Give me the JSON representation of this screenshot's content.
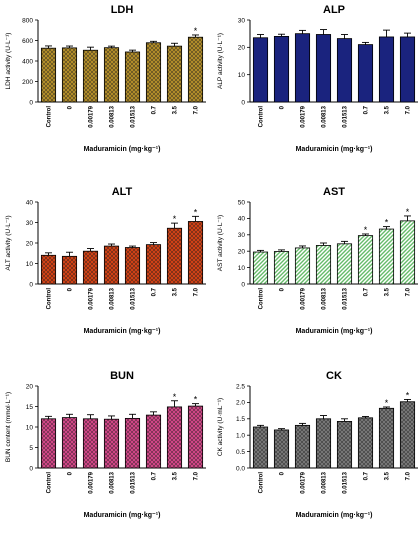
{
  "chart_data": [
    {
      "type": "bar",
      "title": "LDH",
      "ylabel": "LDH activity (U·L⁻¹)",
      "xlabel": "Maduramicin (mg·kg⁻¹)",
      "categories": [
        "Control",
        "0",
        "0.00179",
        "0.00813",
        "0.01513",
        "0.7",
        "3.5",
        "7.0"
      ],
      "values": [
        525,
        528,
        505,
        530,
        488,
        578,
        545,
        632
      ],
      "errors": [
        22,
        18,
        30,
        15,
        18,
        14,
        28,
        22
      ],
      "significant": [
        false,
        false,
        false,
        false,
        false,
        false,
        false,
        true
      ],
      "ylim": [
        0,
        800
      ],
      "yticks": [
        0,
        200,
        400,
        600,
        800
      ],
      "color": "#b8922a",
      "pattern": "crosshatch"
    },
    {
      "type": "bar",
      "title": "ALP",
      "ylabel": "ALP activity (U·L⁻¹)",
      "xlabel": "Maduramicin (mg·kg⁻¹)",
      "categories": [
        "Control",
        "0",
        "0.00179",
        "0.00813",
        "0.01513",
        "0.7",
        "3.5",
        "7.0"
      ],
      "values": [
        23.5,
        24.0,
        25.0,
        24.7,
        23.2,
        21.0,
        23.8,
        23.8
      ],
      "errors": [
        1.2,
        0.8,
        1.2,
        1.8,
        1.5,
        0.8,
        2.5,
        1.4
      ],
      "significant": [
        false,
        false,
        false,
        false,
        false,
        false,
        false,
        false
      ],
      "ylim": [
        0,
        30
      ],
      "yticks": [
        0,
        10,
        20,
        30
      ],
      "color": "#1a237e",
      "pattern": "solid"
    },
    {
      "type": "bar",
      "title": "ALT",
      "ylabel": "ALT activity (U·L⁻¹)",
      "xlabel": "Maduramicin (mg·kg⁻¹)",
      "categories": [
        "Control",
        "0",
        "0.00179",
        "0.00813",
        "0.01513",
        "0.7",
        "3.5",
        "7.0"
      ],
      "values": [
        14.0,
        13.5,
        16.0,
        18.5,
        17.8,
        19.2,
        27.2,
        30.5
      ],
      "errors": [
        1.2,
        2.0,
        1.3,
        1.0,
        0.7,
        1.0,
        2.5,
        2.5
      ],
      "significant": [
        false,
        false,
        false,
        false,
        false,
        false,
        true,
        true
      ],
      "ylim": [
        0,
        40
      ],
      "yticks": [
        0,
        10,
        20,
        30,
        40
      ],
      "color": "#d84315",
      "pattern": "crosshatch"
    },
    {
      "type": "bar",
      "title": "AST",
      "ylabel": "AST activity (U·L⁻¹)",
      "xlabel": "Maduramicin (mg·kg⁻¹)",
      "categories": [
        "Control",
        "0",
        "0.00179",
        "0.00813",
        "0.01513",
        "0.7",
        "3.5",
        "7.0"
      ],
      "values": [
        19.5,
        19.8,
        22.0,
        23.5,
        24.5,
        29.5,
        33.5,
        38.5
      ],
      "errors": [
        1.0,
        1.0,
        1.2,
        1.5,
        1.5,
        1.0,
        1.5,
        3.0
      ],
      "significant": [
        false,
        false,
        false,
        false,
        false,
        true,
        true,
        true
      ],
      "ylim": [
        0,
        50
      ],
      "yticks": [
        0,
        10,
        20,
        30,
        40,
        50
      ],
      "color": "#66bb6a",
      "pattern": "diagonal"
    },
    {
      "type": "bar",
      "title": "BUN",
      "ylabel": "BUN content (mmol·L⁻¹)",
      "xlabel": "Maduramicin (mg·kg⁻¹)",
      "categories": [
        "Control",
        "0",
        "0.00179",
        "0.00813",
        "0.01513",
        "0.7",
        "3.5",
        "7.0"
      ],
      "values": [
        12.0,
        12.3,
        12.0,
        11.9,
        12.1,
        12.9,
        14.9,
        15.1
      ],
      "errors": [
        0.6,
        0.8,
        1.0,
        0.8,
        1.0,
        0.8,
        1.5,
        0.6
      ],
      "significant": [
        false,
        false,
        false,
        false,
        false,
        false,
        true,
        true
      ],
      "ylim": [
        0,
        20
      ],
      "yticks": [
        0,
        5,
        10,
        15,
        20
      ],
      "color": "#d9488b",
      "pattern": "crosshatch"
    },
    {
      "type": "bar",
      "title": "CK",
      "ylabel": "CK activity (U·mL⁻¹)",
      "xlabel": "Maduramicin (mg·kg⁻¹)",
      "categories": [
        "Control",
        "0",
        "0.00179",
        "0.00813",
        "0.01513",
        "0.7",
        "3.5",
        "7.0"
      ],
      "values": [
        1.25,
        1.16,
        1.3,
        1.5,
        1.42,
        1.53,
        1.82,
        2.02
      ],
      "errors": [
        0.05,
        0.04,
        0.06,
        0.1,
        0.08,
        0.04,
        0.04,
        0.07
      ],
      "significant": [
        false,
        false,
        false,
        false,
        false,
        false,
        true,
        true
      ],
      "ylim": [
        0,
        2.5
      ],
      "yticks": [
        0.0,
        0.5,
        1.0,
        1.5,
        2.0,
        2.5
      ],
      "ytick_labels": [
        "0.0",
        "0.5",
        "1.0",
        "1.5",
        "2.0",
        "2.5"
      ],
      "color": "#7a7a7a",
      "pattern": "crosshatch"
    }
  ]
}
